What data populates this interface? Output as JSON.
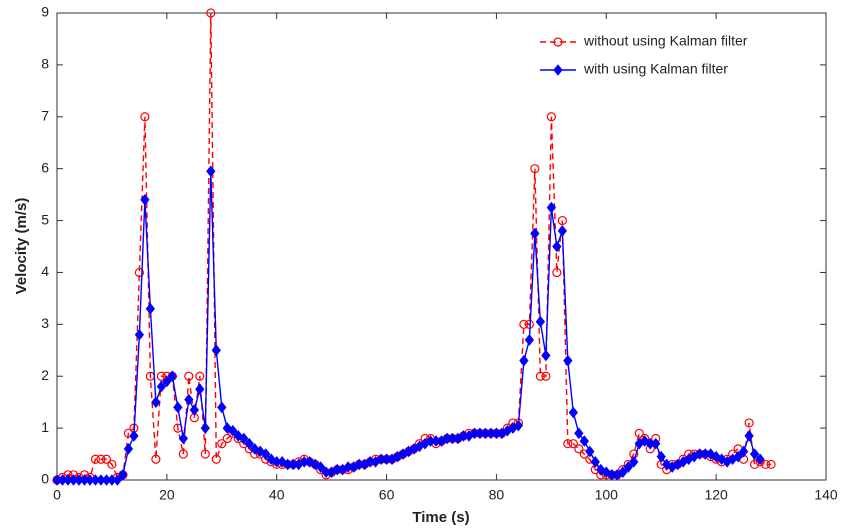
{
  "chart_data": {
    "type": "line",
    "xlabel": "Time (s)",
    "ylabel": "Velocity (m/s)",
    "x": [
      0,
      1,
      2,
      3,
      4,
      5,
      6,
      7,
      8,
      9,
      10,
      11,
      12,
      13,
      14,
      15,
      16,
      17,
      18,
      19,
      20,
      21,
      22,
      23,
      24,
      25,
      26,
      27,
      28,
      29,
      30,
      31,
      32,
      33,
      34,
      35,
      36,
      37,
      38,
      39,
      40,
      41,
      42,
      43,
      44,
      45,
      46,
      47,
      48,
      49,
      50,
      51,
      52,
      53,
      54,
      55,
      56,
      57,
      58,
      59,
      60,
      61,
      62,
      63,
      64,
      65,
      66,
      67,
      68,
      69,
      70,
      71,
      72,
      73,
      74,
      75,
      76,
      77,
      78,
      79,
      80,
      81,
      82,
      83,
      84,
      85,
      86,
      87,
      88,
      89,
      90,
      91,
      92,
      93,
      94,
      95,
      96,
      97,
      98,
      99,
      100,
      101,
      102,
      103,
      104,
      105,
      106,
      107,
      108,
      109,
      110,
      111,
      112,
      113,
      114,
      115,
      116,
      117,
      118,
      119,
      120,
      121,
      122,
      123,
      124,
      125,
      126,
      127,
      128,
      129,
      130
    ],
    "series": [
      {
        "name": "without using Kalman filter",
        "color": "#ff0000",
        "dashed": true,
        "marker": "circle",
        "values": [
          0,
          0.05,
          0.1,
          0.1,
          0.05,
          0.1,
          0.05,
          0.4,
          0.4,
          0.4,
          0.3,
          0.05,
          0.1,
          0.9,
          1.0,
          4.0,
          7.0,
          2.0,
          0.4,
          2.0,
          2.0,
          2.0,
          1.0,
          0.5,
          2.0,
          1.2,
          2.0,
          0.5,
          9.0,
          0.4,
          0.7,
          0.8,
          0.9,
          0.8,
          0.7,
          0.6,
          0.5,
          0.5,
          0.4,
          0.35,
          0.3,
          0.3,
          0.3,
          0.3,
          0.35,
          0.4,
          0.35,
          0.3,
          0.2,
          0.1,
          0.15,
          0.2,
          0.2,
          0.2,
          0.25,
          0.3,
          0.3,
          0.35,
          0.4,
          0.4,
          0.4,
          0.4,
          0.45,
          0.5,
          0.55,
          0.6,
          0.7,
          0.8,
          0.8,
          0.7,
          0.75,
          0.8,
          0.8,
          0.8,
          0.85,
          0.9,
          0.9,
          0.9,
          0.9,
          0.9,
          0.9,
          0.9,
          1.0,
          1.1,
          1.1,
          3.0,
          3.0,
          6.0,
          2.0,
          2.0,
          7.0,
          4.0,
          5.0,
          0.7,
          0.7,
          0.6,
          0.5,
          0.4,
          0.2,
          0.1,
          0.1,
          0.1,
          0.1,
          0.2,
          0.3,
          0.5,
          0.9,
          0.8,
          0.6,
          0.8,
          0.3,
          0.2,
          0.3,
          0.3,
          0.4,
          0.5,
          0.5,
          0.5,
          0.5,
          0.45,
          0.4,
          0.35,
          0.4,
          0.5,
          0.6,
          0.4,
          1.1,
          0.3,
          0.35,
          0.3,
          0.3
        ]
      },
      {
        "name": "with using Kalman filter",
        "color": "#0000ff",
        "dashed": false,
        "marker": "diamond",
        "values": [
          0,
          0,
          0,
          0,
          0,
          0,
          0,
          0,
          0,
          0,
          0,
          0,
          0.1,
          0.6,
          0.85,
          2.8,
          5.4,
          3.3,
          1.5,
          1.8,
          1.9,
          2.0,
          1.4,
          0.8,
          1.55,
          1.35,
          1.75,
          1.0,
          5.95,
          2.5,
          1.4,
          1.0,
          0.95,
          0.85,
          0.8,
          0.7,
          0.6,
          0.55,
          0.5,
          0.4,
          0.35,
          0.35,
          0.3,
          0.3,
          0.3,
          0.35,
          0.35,
          0.3,
          0.25,
          0.15,
          0.15,
          0.2,
          0.2,
          0.25,
          0.25,
          0.3,
          0.3,
          0.35,
          0.35,
          0.4,
          0.4,
          0.4,
          0.45,
          0.5,
          0.55,
          0.6,
          0.65,
          0.7,
          0.75,
          0.75,
          0.75,
          0.8,
          0.8,
          0.8,
          0.85,
          0.85,
          0.9,
          0.9,
          0.9,
          0.9,
          0.9,
          0.9,
          0.95,
          1.0,
          1.05,
          2.3,
          2.7,
          4.75,
          3.05,
          2.4,
          5.25,
          4.5,
          4.8,
          2.3,
          1.3,
          0.9,
          0.75,
          0.55,
          0.35,
          0.2,
          0.15,
          0.1,
          0.1,
          0.15,
          0.25,
          0.35,
          0.7,
          0.75,
          0.7,
          0.7,
          0.45,
          0.3,
          0.25,
          0.3,
          0.35,
          0.4,
          0.45,
          0.5,
          0.5,
          0.5,
          0.45,
          0.4,
          0.35,
          0.4,
          0.45,
          0.55,
          0.85,
          0.5,
          0.4,
          null,
          null
        ]
      }
    ],
    "xlim": [
      0,
      140
    ],
    "xticks": [
      0,
      20,
      40,
      60,
      80,
      100,
      120,
      140
    ],
    "ylim": [
      0,
      9
    ],
    "yticks": [
      0,
      1,
      2,
      3,
      4,
      5,
      6,
      7,
      8,
      9
    ],
    "grid": false,
    "legend": "upper right"
  }
}
